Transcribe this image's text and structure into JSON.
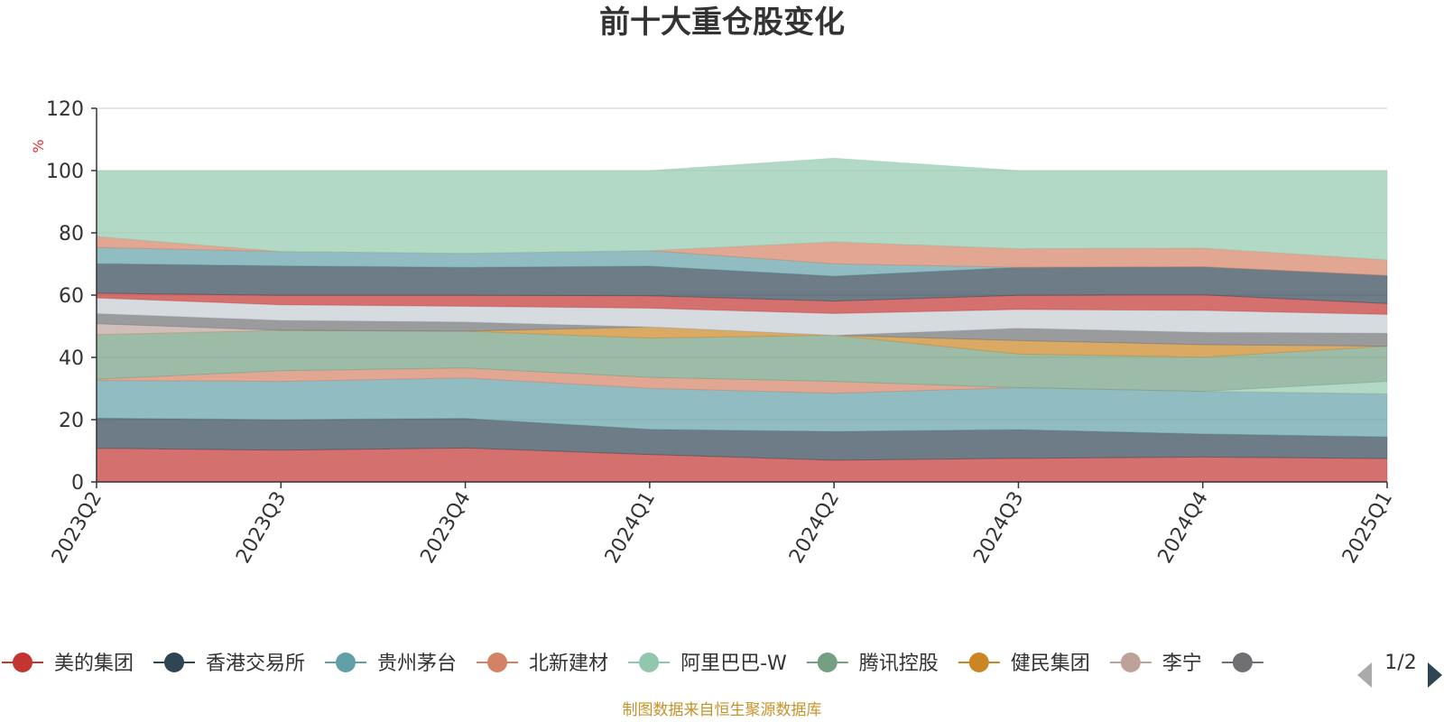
{
  "chart_data": {
    "type": "area",
    "stacked": true,
    "title": "前十大重仓股变化",
    "ylabel": "%",
    "ylim": [
      0,
      120
    ],
    "yticks": [
      0,
      20,
      40,
      60,
      80,
      100,
      120
    ],
    "categories": [
      "2023Q2",
      "2023Q3",
      "2023Q4",
      "2024Q1",
      "2024Q2",
      "2024Q3",
      "2024Q4",
      "2025Q1"
    ],
    "grid": true,
    "legend_placement": "bottom",
    "series": [
      {
        "name": "美的集团",
        "color": "#c23531",
        "values": [
          10.8,
          10.2,
          10.9,
          8.8,
          7.0,
          7.6,
          8.0,
          7.5
        ]
      },
      {
        "name": "香港交易所",
        "color": "#2f4554",
        "values": [
          9.7,
          9.8,
          9.5,
          8.1,
          9.2,
          9.2,
          7.4,
          7.0
        ]
      },
      {
        "name": "贵州茅台",
        "color": "#61a0a8",
        "values": [
          12.1,
          12.3,
          13.0,
          13.2,
          12.3,
          13.5,
          13.7,
          13.8
        ]
      },
      {
        "name": "北新建材",
        "color": "#d48265",
        "values": [
          0.4,
          3.4,
          3.2,
          3.5,
          3.8,
          0,
          0,
          0
        ]
      },
      {
        "name": "阿里巴巴-W",
        "color": "#91c7ae",
        "values": [
          0,
          0,
          0,
          0,
          0,
          0,
          0,
          4.0
        ]
      },
      {
        "name": "腾讯控股",
        "color": "#749f83",
        "values": [
          14.3,
          13.0,
          11.8,
          12.6,
          14.8,
          10.8,
          11.0,
          11.3
        ]
      },
      {
        "name": "健民集团",
        "color": "#ca8622",
        "values": [
          0,
          0,
          0,
          3.6,
          0,
          4.3,
          4.0,
          0
        ]
      },
      {
        "name": "李宁",
        "color": "#bda29a",
        "values": [
          3.5,
          0,
          0,
          0,
          0,
          0,
          0,
          0
        ]
      },
      {
        "name": "",
        "color": "#6e7074",
        "values": [
          3.3,
          3.2,
          3.0,
          0,
          0,
          4.0,
          4.0,
          4.2
        ]
      },
      {
        "name": "",
        "color": "#c4ccd3",
        "values": [
          5.0,
          5.0,
          5.0,
          6.0,
          7.0,
          6.0,
          7.0,
          6.0
        ]
      },
      {
        "name": "",
        "color": "#c23531",
        "values": [
          1.5,
          3.0,
          3.5,
          4.0,
          4.0,
          4.5,
          5.0,
          3.5
        ]
      },
      {
        "name": "",
        "color": "#2f4554",
        "values": [
          9.5,
          9.5,
          9.0,
          9.5,
          8.0,
          9.0,
          9.0,
          9.0
        ]
      },
      {
        "name": "",
        "color": "#61a0a8",
        "values": [
          5.2,
          4.6,
          4.5,
          5.0,
          4.0,
          0,
          0,
          0
        ]
      },
      {
        "name": "",
        "color": "#d48265",
        "values": [
          3.5,
          0,
          0,
          0,
          7.0,
          6.0,
          6.0,
          5.0
        ]
      },
      {
        "name": "",
        "color": "#91c7ae",
        "values": [
          21.2,
          26.0,
          26.6,
          25.7,
          26.9,
          25.1,
          24.9,
          28.7
        ]
      }
    ]
  },
  "legend": {
    "page_indicator": "1/2"
  },
  "source_note": "制图数据来自恒生聚源数据库"
}
